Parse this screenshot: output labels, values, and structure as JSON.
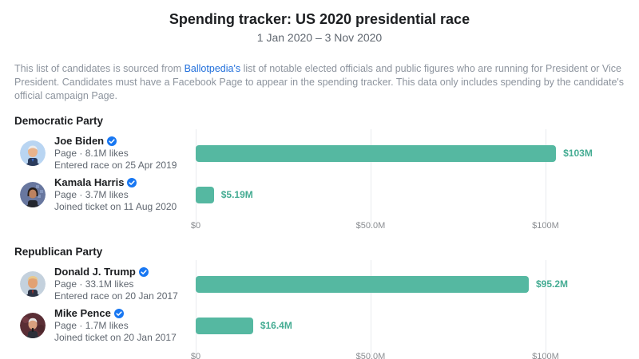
{
  "header": {
    "title": "Spending tracker: US 2020 presidential race",
    "date_range": "1 Jan 2020 – 3 Nov 2020"
  },
  "description": {
    "prefix": "This list of candidates is sourced from ",
    "link_text": "Ballotpedia's",
    "suffix": " list of notable elected officials and public figures who are running for President or Vice President. Candidates must have a Facebook Page to appear in the spending tracker. This data only includes spending by the candidate's official campaign Page."
  },
  "icons": {
    "verified_badge": "verified-badge-icon",
    "avatars": [
      "avatar-joe-biden",
      "avatar-kamala-harris",
      "avatar-donald-trump",
      "avatar-mike-pence"
    ]
  },
  "colors": {
    "bar_teal": "#55b8a1",
    "value_label_teal": "#45ac93",
    "link_blue": "#216fdb",
    "badge_blue": "#1877f2",
    "text_dark": "#1c1e21",
    "text_gray": "#606770",
    "text_light_gray": "#8d949e",
    "gridline": "#e9ebee"
  },
  "chart_data": {
    "type": "bar",
    "orientation": "horizontal",
    "title": "Spending tracker: US 2020 presidential race",
    "subtitle": "1 Jan 2020 – 3 Nov 2020",
    "unit": "USD millions",
    "xlim": [
      0,
      100
    ],
    "axis_max_m": 100,
    "ticks": {
      "t0": "$0",
      "t50": "$50.0M",
      "t100": "$100M"
    },
    "tick_values_m": [
      0,
      50,
      100
    ],
    "grid": true,
    "sections": [
      {
        "party": "Democratic Party",
        "candidates": [
          {
            "name": "Joe Biden",
            "verified": true,
            "page_likes": "Page · 8.1M likes",
            "race_info": "Entered race on 25 Apr 2019",
            "spend_m": 103,
            "spend_label": "$103M"
          },
          {
            "name": "Kamala Harris",
            "verified": true,
            "page_likes": "Page · 3.7M likes",
            "race_info": "Joined ticket on 11 Aug 2020",
            "spend_m": 5.19,
            "spend_label": "$5.19M"
          }
        ]
      },
      {
        "party": "Republican Party",
        "candidates": [
          {
            "name": "Donald J. Trump",
            "verified": true,
            "page_likes": "Page · 33.1M likes",
            "race_info": "Entered race on 20 Jan 2017",
            "spend_m": 95.2,
            "spend_label": "$95.2M"
          },
          {
            "name": "Mike Pence",
            "verified": true,
            "page_likes": "Page · 1.7M likes",
            "race_info": "Joined ticket on 20 Jan 2017",
            "spend_m": 16.4,
            "spend_label": "$16.4M"
          }
        ]
      }
    ]
  }
}
